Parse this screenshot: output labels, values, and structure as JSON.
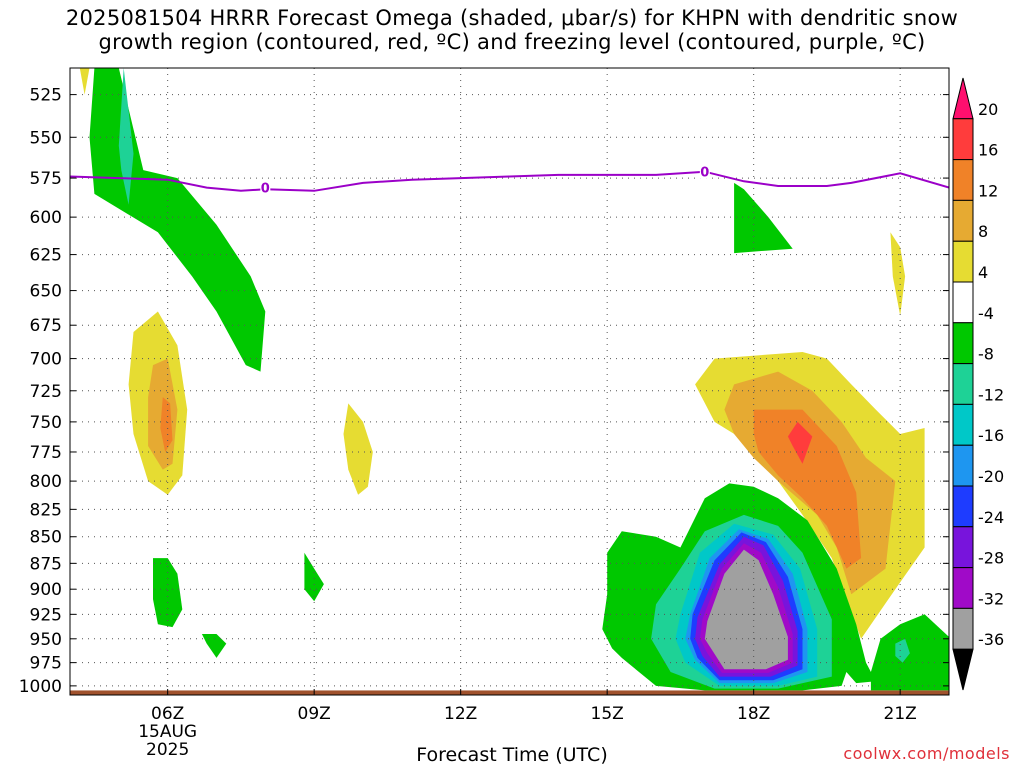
{
  "header": {
    "title_line1": "2025081504 HRRR Forecast Omega (shaded, μbar/s) for KHPN with dendritic snow",
    "title_line2": "growth region (contoured, red, ºC) and freezing level (contoured, purple, ºC)"
  },
  "chart_data": {
    "type": "heatmap",
    "xlabel": "Forecast Time (UTC)",
    "x_ticks": [
      {
        "hour": 6,
        "label": "06Z",
        "sub1": "15AUG",
        "sub2": "2025"
      },
      {
        "hour": 9,
        "label": "09Z"
      },
      {
        "hour": 12,
        "label": "12Z"
      },
      {
        "hour": 15,
        "label": "15Z"
      },
      {
        "hour": 18,
        "label": "18Z"
      },
      {
        "hour": 21,
        "label": "21Z"
      }
    ],
    "xlim": [
      4,
      22
    ],
    "y_ticks": [
      525,
      550,
      575,
      600,
      625,
      650,
      675,
      700,
      725,
      750,
      775,
      800,
      825,
      850,
      875,
      900,
      925,
      950,
      975,
      1000
    ],
    "ylim": [
      510,
      1010
    ],
    "y_scale": "log-pressure",
    "grid": true,
    "colorbar": {
      "levels": [
        20,
        16,
        12,
        8,
        4,
        -4,
        -8,
        -12,
        -16,
        -20,
        -24,
        -28,
        -32,
        -36
      ],
      "colors": [
        "#ff0f6e",
        "#ff3c3c",
        "#f08228",
        "#e6aa32",
        "#e6dc32",
        "#ffffff",
        "#00c800",
        "#1ed296",
        "#00c8c8",
        "#1e96f0",
        "#1e3cff",
        "#7814dc",
        "#a00ac8",
        "#a0a0a0",
        "#000000"
      ]
    },
    "freezing_level": {
      "color": "#9b00c8",
      "label": "0",
      "points": [
        [
          4.0,
          574
        ],
        [
          5.0,
          575
        ],
        [
          6.0,
          576
        ],
        [
          6.8,
          581
        ],
        [
          7.5,
          583
        ],
        [
          8.0,
          582
        ],
        [
          9.0,
          583
        ],
        [
          10.0,
          578
        ],
        [
          11.0,
          576
        ],
        [
          12.0,
          575
        ],
        [
          13.0,
          574
        ],
        [
          14.0,
          573
        ],
        [
          15.0,
          573
        ],
        [
          16.0,
          573
        ],
        [
          17.0,
          571
        ],
        [
          17.8,
          577
        ],
        [
          18.5,
          580
        ],
        [
          19.5,
          580
        ],
        [
          20.0,
          578
        ],
        [
          21.0,
          572
        ],
        [
          22.0,
          581
        ]
      ],
      "label_points": [
        [
          8.0,
          581
        ],
        [
          17.0,
          571
        ]
      ]
    },
    "omega_regions": [
      {
        "value": -8,
        "points": [
          [
            4.5,
            510
          ],
          [
            5.0,
            510
          ],
          [
            5.5,
            570
          ],
          [
            6.2,
            575
          ],
          [
            7.0,
            605
          ],
          [
            7.7,
            640
          ],
          [
            8.0,
            665
          ],
          [
            7.9,
            710
          ],
          [
            7.6,
            705
          ],
          [
            7.0,
            665
          ],
          [
            6.5,
            640
          ],
          [
            5.8,
            610
          ],
          [
            4.5,
            585
          ],
          [
            4.4,
            550
          ]
        ]
      },
      {
        "value": -12,
        "points": [
          [
            5.0,
            555
          ],
          [
            5.1,
            510
          ],
          [
            5.3,
            560
          ],
          [
            5.2,
            592
          ],
          [
            5.05,
            570
          ]
        ]
      },
      {
        "value": 4,
        "points": [
          [
            4.2,
            510
          ],
          [
            4.4,
            510
          ],
          [
            4.3,
            525
          ]
        ]
      },
      {
        "value": 4,
        "points": [
          [
            5.3,
            680
          ],
          [
            5.8,
            665
          ],
          [
            6.2,
            690
          ],
          [
            6.4,
            740
          ],
          [
            6.3,
            795
          ],
          [
            6.0,
            812
          ],
          [
            5.6,
            800
          ],
          [
            5.3,
            760
          ],
          [
            5.2,
            720
          ]
        ]
      },
      {
        "value": 8,
        "points": [
          [
            5.7,
            705
          ],
          [
            6.0,
            700
          ],
          [
            6.2,
            740
          ],
          [
            6.1,
            785
          ],
          [
            5.9,
            790
          ],
          [
            5.6,
            770
          ],
          [
            5.6,
            730
          ]
        ]
      },
      {
        "value": 12,
        "points": [
          [
            5.9,
            730
          ],
          [
            6.05,
            735
          ],
          [
            6.1,
            765
          ],
          [
            5.95,
            775
          ],
          [
            5.85,
            755
          ]
        ]
      },
      {
        "value": 4,
        "points": [
          [
            9.7,
            735
          ],
          [
            10.0,
            750
          ],
          [
            10.2,
            775
          ],
          [
            10.1,
            805
          ],
          [
            9.9,
            812
          ],
          [
            9.7,
            790
          ],
          [
            9.6,
            760
          ]
        ]
      },
      {
        "value": -8,
        "points": [
          [
            5.7,
            870
          ],
          [
            6.0,
            870
          ],
          [
            6.2,
            885
          ],
          [
            6.3,
            920
          ],
          [
            6.1,
            938
          ],
          [
            5.8,
            935
          ],
          [
            5.7,
            910
          ]
        ]
      },
      {
        "value": -8,
        "points": [
          [
            6.7,
            945
          ],
          [
            7.0,
            945
          ],
          [
            7.2,
            955
          ],
          [
            7.0,
            970
          ],
          [
            6.8,
            955
          ]
        ]
      },
      {
        "value": -8,
        "points": [
          [
            8.8,
            865
          ],
          [
            9.0,
            880
          ],
          [
            9.2,
            895
          ],
          [
            9.0,
            912
          ],
          [
            8.8,
            900
          ]
        ]
      },
      {
        "value": -8,
        "points": [
          [
            17.6,
            578
          ],
          [
            17.8,
            582
          ],
          [
            18.3,
            600
          ],
          [
            18.8,
            621
          ],
          [
            17.6,
            624
          ]
        ]
      },
      {
        "value": 4,
        "points": [
          [
            20.8,
            610
          ],
          [
            21.0,
            620
          ],
          [
            21.1,
            640
          ],
          [
            21.0,
            668
          ],
          [
            20.85,
            640
          ]
        ]
      },
      {
        "value": 4,
        "points": [
          [
            19.0,
            695
          ],
          [
            19.5,
            700
          ],
          [
            20.0,
            720
          ],
          [
            20.5,
            740
          ],
          [
            21.0,
            760
          ],
          [
            21.5,
            755
          ],
          [
            21.5,
            860
          ],
          [
            20.9,
            900
          ],
          [
            20.2,
            950
          ],
          [
            19.9,
            910
          ],
          [
            19.6,
            870
          ],
          [
            19.0,
            830
          ],
          [
            18.5,
            800
          ],
          [
            18.0,
            770
          ],
          [
            17.2,
            750
          ],
          [
            16.8,
            720
          ],
          [
            17.2,
            700
          ]
        ]
      },
      {
        "value": 8,
        "points": [
          [
            17.6,
            720
          ],
          [
            18.5,
            710
          ],
          [
            19.2,
            725
          ],
          [
            19.8,
            750
          ],
          [
            20.3,
            780
          ],
          [
            20.9,
            800
          ],
          [
            20.7,
            880
          ],
          [
            20.0,
            905
          ],
          [
            19.7,
            860
          ],
          [
            19.3,
            830
          ],
          [
            18.5,
            800
          ],
          [
            18.0,
            780
          ],
          [
            17.6,
            760
          ],
          [
            17.4,
            740
          ]
        ]
      },
      {
        "value": 12,
        "points": [
          [
            18.0,
            740
          ],
          [
            19.0,
            740
          ],
          [
            19.7,
            770
          ],
          [
            20.1,
            810
          ],
          [
            20.2,
            870
          ],
          [
            19.9,
            880
          ],
          [
            19.5,
            840
          ],
          [
            19.0,
            815
          ],
          [
            18.5,
            795
          ],
          [
            18.1,
            775
          ],
          [
            18.0,
            760
          ]
        ]
      },
      {
        "value": 16,
        "points": [
          [
            18.9,
            750
          ],
          [
            19.2,
            762
          ],
          [
            19.0,
            785
          ],
          [
            18.8,
            770
          ],
          [
            18.7,
            762
          ]
        ]
      },
      {
        "value": -8,
        "points": [
          [
            15.0,
            865
          ],
          [
            15.3,
            845
          ],
          [
            16.0,
            850
          ],
          [
            16.5,
            860
          ],
          [
            17.0,
            815
          ],
          [
            17.5,
            802
          ],
          [
            18.0,
            805
          ],
          [
            18.5,
            815
          ],
          [
            19.1,
            835
          ],
          [
            19.7,
            880
          ],
          [
            20.1,
            935
          ],
          [
            20.3,
            975
          ],
          [
            20.5,
            995
          ],
          [
            20.1,
            997
          ],
          [
            19.9,
            985
          ],
          [
            19.8,
            1000
          ],
          [
            19.0,
            1005
          ],
          [
            17.0,
            1005
          ],
          [
            16.0,
            1000
          ],
          [
            15.3,
            970
          ],
          [
            15.1,
            960
          ],
          [
            14.9,
            940
          ],
          [
            15.0,
            905
          ]
        ]
      },
      {
        "value": -12,
        "points": [
          [
            16.0,
            915
          ],
          [
            16.5,
            880
          ],
          [
            17.0,
            845
          ],
          [
            17.8,
            830
          ],
          [
            18.5,
            840
          ],
          [
            19.0,
            865
          ],
          [
            19.6,
            930
          ],
          [
            19.6,
            990
          ],
          [
            18.5,
            1003
          ],
          [
            17.2,
            1003
          ],
          [
            16.3,
            985
          ],
          [
            15.9,
            950
          ]
        ]
      },
      {
        "value": -16,
        "points": [
          [
            16.5,
            925
          ],
          [
            16.9,
            865
          ],
          [
            17.6,
            838
          ],
          [
            18.4,
            848
          ],
          [
            18.95,
            880
          ],
          [
            19.3,
            940
          ],
          [
            19.3,
            990
          ],
          [
            18.5,
            1000
          ],
          [
            17.3,
            1000
          ],
          [
            16.6,
            975
          ],
          [
            16.4,
            950
          ]
        ]
      },
      {
        "value": -20,
        "points": [
          [
            16.7,
            925
          ],
          [
            17.1,
            870
          ],
          [
            17.7,
            843
          ],
          [
            18.3,
            852
          ],
          [
            18.8,
            885
          ],
          [
            19.1,
            940
          ],
          [
            19.1,
            985
          ],
          [
            18.4,
            997
          ],
          [
            17.3,
            997
          ],
          [
            16.8,
            972
          ],
          [
            16.6,
            950
          ]
        ]
      },
      {
        "value": -24,
        "points": [
          [
            16.75,
            925
          ],
          [
            17.2,
            872
          ],
          [
            17.75,
            846
          ],
          [
            18.25,
            855
          ],
          [
            18.7,
            888
          ],
          [
            19.0,
            940
          ],
          [
            19.0,
            982
          ],
          [
            18.4,
            994
          ],
          [
            17.3,
            994
          ],
          [
            16.85,
            970
          ],
          [
            16.7,
            950
          ]
        ]
      },
      {
        "value": -28,
        "points": [
          [
            16.85,
            928
          ],
          [
            17.3,
            876
          ],
          [
            17.8,
            850
          ],
          [
            18.2,
            858
          ],
          [
            18.6,
            892
          ],
          [
            18.9,
            942
          ],
          [
            18.9,
            978
          ],
          [
            18.35,
            990
          ],
          [
            17.3,
            990
          ],
          [
            16.95,
            968
          ],
          [
            16.8,
            950
          ]
        ]
      },
      {
        "value": -32,
        "points": [
          [
            16.95,
            930
          ],
          [
            17.35,
            880
          ],
          [
            17.8,
            856
          ],
          [
            18.15,
            865
          ],
          [
            18.5,
            898
          ],
          [
            18.8,
            945
          ],
          [
            18.8,
            975
          ],
          [
            18.3,
            986
          ],
          [
            17.35,
            986
          ],
          [
            17.05,
            965
          ],
          [
            16.9,
            950
          ]
        ]
      },
      {
        "value": -36,
        "points": [
          [
            17.05,
            932
          ],
          [
            17.4,
            885
          ],
          [
            17.8,
            862
          ],
          [
            18.1,
            872
          ],
          [
            18.4,
            905
          ],
          [
            18.7,
            948
          ],
          [
            18.7,
            972
          ],
          [
            18.25,
            982
          ],
          [
            17.4,
            982
          ],
          [
            17.15,
            962
          ],
          [
            17.0,
            950
          ]
        ]
      },
      {
        "value": -8,
        "points": [
          [
            20.4,
            985
          ],
          [
            20.6,
            950
          ],
          [
            21.0,
            935
          ],
          [
            21.5,
            925
          ],
          [
            22.0,
            948
          ],
          [
            22.0,
            1005
          ],
          [
            20.4,
            1005
          ]
        ]
      },
      {
        "value": -12,
        "points": [
          [
            20.9,
            955
          ],
          [
            21.1,
            950
          ],
          [
            21.2,
            965
          ],
          [
            21.05,
            975
          ],
          [
            20.9,
            968
          ]
        ]
      }
    ],
    "terrain": {
      "color": "#a0522d",
      "pressure": 1005
    }
  },
  "footer": {
    "credit": "coolwx.com/models"
  }
}
